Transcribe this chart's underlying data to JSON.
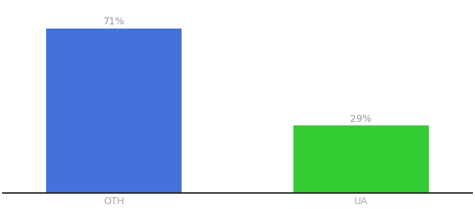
{
  "categories": [
    "OTH",
    "UA"
  ],
  "values": [
    71,
    29
  ],
  "bar_colors": [
    "#4472db",
    "#33cc33"
  ],
  "label_texts": [
    "71%",
    "29%"
  ],
  "label_color": "#999999",
  "label_fontsize": 10,
  "tick_fontsize": 10,
  "tick_color": "#aaaaaa",
  "background_color": "#ffffff",
  "ylim": [
    0,
    82
  ],
  "bar_width": 0.55,
  "figsize": [
    6.8,
    3.0
  ],
  "dpi": 100,
  "spine_color": "#222222"
}
